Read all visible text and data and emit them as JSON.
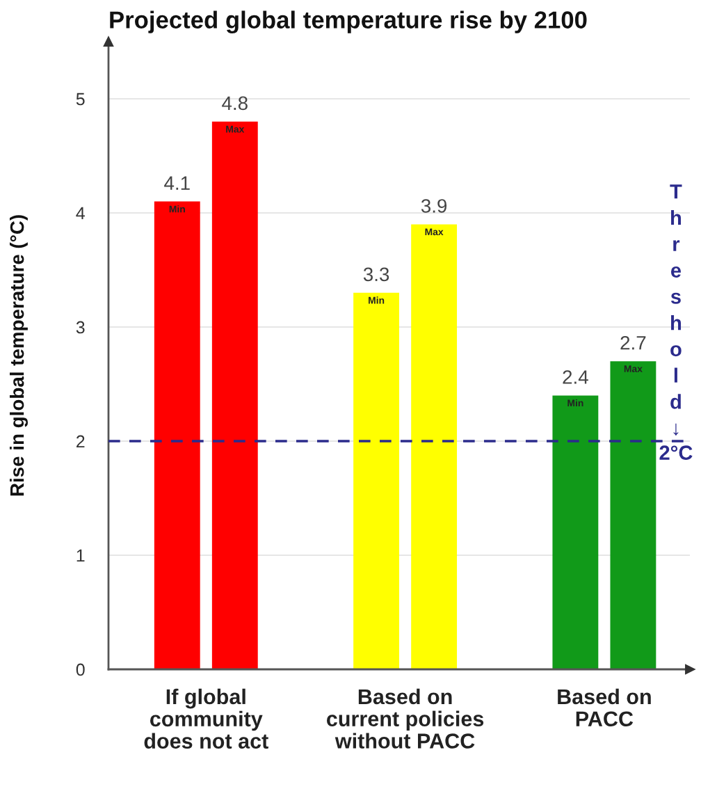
{
  "chart_data": {
    "type": "bar",
    "title": "Projected global temperature rise by 2100",
    "ylabel": "Rise in global temperature (°C)",
    "categories": [
      "If global\ncommunity\ndoes not act",
      "Based on\ncurrent policies\nwithout PACC",
      "Based on\nPACC"
    ],
    "series": [
      {
        "name": "Min",
        "colors": [
          "#ff0000",
          "#ffff00",
          "#119a19"
        ],
        "values": [
          4.1,
          3.3,
          2.4
        ]
      },
      {
        "name": "Max",
        "colors": [
          "#ff0000",
          "#ffff00",
          "#119a19"
        ],
        "values": [
          4.8,
          3.9,
          2.7
        ]
      }
    ],
    "ylim": [
      0,
      5.5
    ],
    "yticks": [
      0,
      1,
      2,
      3,
      4,
      5
    ],
    "grid": "y",
    "data_labels": true,
    "ref_lines": [
      {
        "axis": "y",
        "value": 2,
        "label": "Threshold ↓ 2°C",
        "color": "#2b2b8c",
        "line_style": "dashed"
      }
    ]
  }
}
